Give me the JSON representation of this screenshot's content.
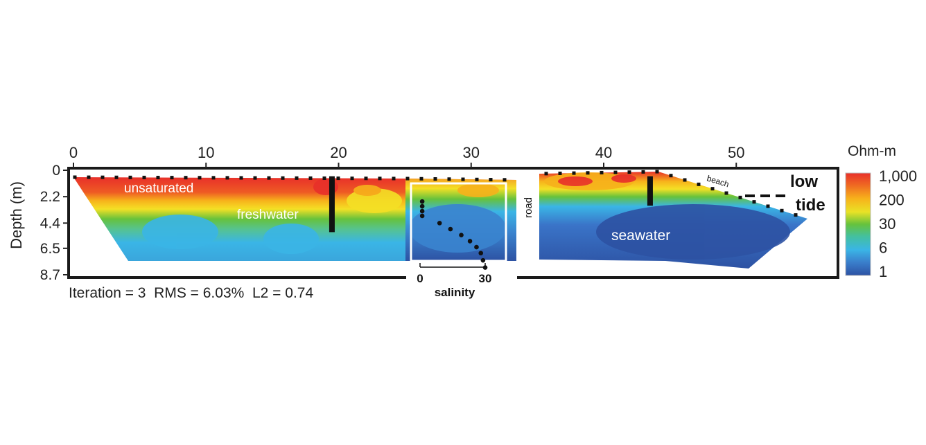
{
  "chart_data": {
    "type": "heatmap",
    "x_axis": {
      "ticks": [
        0,
        10,
        20,
        30,
        40,
        50
      ],
      "range": [
        0,
        56
      ],
      "label": ""
    },
    "y_axis": {
      "label": "Depth (m)",
      "ticks": [
        "0",
        "2.2",
        "4.4",
        "6.5",
        "8.7"
      ],
      "tick_values": [
        0,
        2.2,
        4.4,
        6.5,
        8.7
      ],
      "range": [
        0,
        8.7
      ],
      "inverted": true
    },
    "colorbar": {
      "title": "Ohm-m",
      "scale": "log",
      "labels": [
        "1,000",
        "200",
        "30",
        "6",
        "1"
      ],
      "values": [
        1000,
        200,
        30,
        6,
        1
      ],
      "colors": [
        "#e8302a",
        "#f7b21b",
        "#66c23c",
        "#3ab5e6",
        "#2d52a3"
      ]
    },
    "annotations": {
      "unsaturated": "unsaturated",
      "freshwater": "freshwater",
      "seawater": "seawater",
      "road": "road",
      "beach": "beach",
      "low": "low",
      "tide": "tide"
    },
    "inset": {
      "xlabel": "salinity",
      "ticks": [
        "0",
        "30"
      ],
      "tick_values": [
        0,
        30
      ],
      "profile": [
        {
          "salinity": 1,
          "depth": 2.6
        },
        {
          "salinity": 1,
          "depth": 3.0
        },
        {
          "salinity": 1,
          "depth": 3.4
        },
        {
          "salinity": 1,
          "depth": 3.8
        },
        {
          "salinity": 9,
          "depth": 4.4
        },
        {
          "salinity": 14,
          "depth": 4.9
        },
        {
          "salinity": 19,
          "depth": 5.4
        },
        {
          "salinity": 23,
          "depth": 5.9
        },
        {
          "salinity": 26,
          "depth": 6.4
        },
        {
          "salinity": 28,
          "depth": 6.9
        },
        {
          "salinity": 29,
          "depth": 7.5
        },
        {
          "salinity": 30,
          "depth": 8.1
        }
      ]
    },
    "wells": [
      {
        "x": 19.5,
        "depth": 4.0
      },
      {
        "x": 43.5,
        "depth": 1.8
      }
    ],
    "footer": "Iteration = 3  RMS = 6.03%  L2 = 0.74"
  }
}
